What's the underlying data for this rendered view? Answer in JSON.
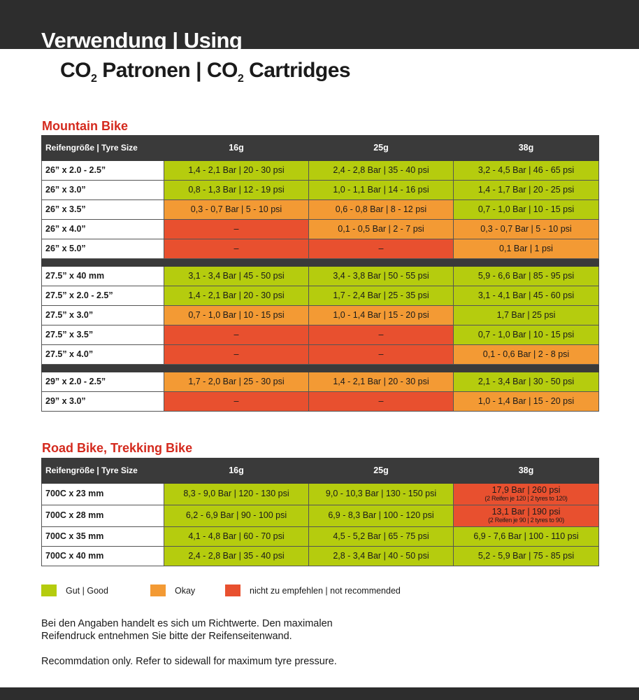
{
  "header": {
    "title": "Verwendung | Using",
    "subtitle_a": "CO",
    "subtitle_b": "2",
    "subtitle_c": " Patronen | CO",
    "subtitle_d": "2",
    "subtitle_e": " Cartridges"
  },
  "colors": {
    "good": "#b5cc0e",
    "okay": "#f39a34",
    "not_recommended": "#e8502f",
    "header": "#3a3a3a",
    "section_title": "#d42a1e"
  },
  "tables": [
    {
      "title": "Mountain Bike",
      "columns": [
        "Reifengröße | Tyre Size",
        "16g",
        "25g",
        "38g"
      ],
      "rows": [
        {
          "size": "26” x 2.0 - 2.5”",
          "cells": [
            [
              "1,4 - 2,1 Bar | 20 - 30 psi",
              "g"
            ],
            [
              "2,4 - 2,8 Bar | 35 - 40 psi",
              "g"
            ],
            [
              "3,2 - 4,5 Bar | 46 - 65 psi",
              "g"
            ]
          ]
        },
        {
          "size": "26” x 3.0”",
          "cells": [
            [
              "0,8 - 1,3 Bar | 12 - 19 psi",
              "g"
            ],
            [
              "1,0 - 1,1 Bar | 14 - 16 psi",
              "g"
            ],
            [
              "1,4 - 1,7 Bar | 20 - 25 psi",
              "g"
            ]
          ]
        },
        {
          "size": "26” x 3.5”",
          "cells": [
            [
              "0,3 - 0,7 Bar | 5 - 10 psi",
              "o"
            ],
            [
              "0,6 - 0,8 Bar | 8 - 12 psi",
              "o"
            ],
            [
              "0,7 - 1,0 Bar | 10 - 15 psi",
              "g"
            ]
          ]
        },
        {
          "size": "26” x 4.0”",
          "cells": [
            [
              "–",
              "x"
            ],
            [
              "0,1 - 0,5 Bar | 2 - 7 psi",
              "o"
            ],
            [
              "0,3 - 0,7 Bar | 5 - 10 psi",
              "o"
            ]
          ]
        },
        {
          "size": "26” x 5.0”",
          "cells": [
            [
              "–",
              "x"
            ],
            [
              "–",
              "x"
            ],
            [
              "0,1 Bar | 1 psi",
              "o"
            ]
          ]
        },
        {
          "separator": true
        },
        {
          "size": "27.5” x 40 mm",
          "cells": [
            [
              "3,1 - 3,4 Bar | 45 - 50 psi",
              "g"
            ],
            [
              "3,4 - 3,8 Bar | 50 - 55 psi",
              "g"
            ],
            [
              "5,9 - 6,6 Bar | 85 - 95 psi",
              "g"
            ]
          ]
        },
        {
          "size": "27.5” x 2.0 - 2.5”",
          "cells": [
            [
              "1,4 - 2,1 Bar | 20 - 30 psi",
              "g"
            ],
            [
              "1,7 - 2,4 Bar | 25 - 35 psi",
              "g"
            ],
            [
              "3,1 - 4,1 Bar | 45 - 60 psi",
              "g"
            ]
          ]
        },
        {
          "size": "27.5” x 3.0”",
          "cells": [
            [
              "0,7 - 1,0 Bar | 10 - 15 psi",
              "o"
            ],
            [
              "1,0 - 1,4 Bar | 15 - 20 psi",
              "o"
            ],
            [
              "1,7 Bar | 25 psi",
              "g"
            ]
          ]
        },
        {
          "size": "27.5” x 3.5”",
          "cells": [
            [
              "–",
              "x"
            ],
            [
              "–",
              "x"
            ],
            [
              "0,7 - 1,0 Bar | 10 - 15 psi",
              "g"
            ]
          ]
        },
        {
          "size": "27.5” x 4.0”",
          "cells": [
            [
              "–",
              "x"
            ],
            [
              "–",
              "x"
            ],
            [
              "0,1 - 0,6 Bar | 2 - 8 psi",
              "o"
            ]
          ]
        },
        {
          "separator": true
        },
        {
          "size": "29” x 2.0 - 2.5”",
          "cells": [
            [
              "1,7 - 2,0 Bar | 25 - 30 psi",
              "o"
            ],
            [
              "1,4 - 2,1 Bar | 20 - 30 psi",
              "o"
            ],
            [
              "2,1 - 3,4 Bar | 30 - 50 psi",
              "g"
            ]
          ]
        },
        {
          "size": "29” x 3.0”",
          "cells": [
            [
              "–",
              "x"
            ],
            [
              "–",
              "x"
            ],
            [
              "1,0 - 1,4 Bar | 15 - 20 psi",
              "o"
            ]
          ]
        }
      ]
    },
    {
      "title": "Road Bike, Trekking Bike",
      "columns": [
        "Reifengröße | Tyre Size",
        "16g",
        "25g",
        "38g"
      ],
      "rows": [
        {
          "size": "700C x 23 mm",
          "tall": true,
          "cells": [
            [
              "8,3 - 9,0 Bar | 120 - 130 psi",
              "g"
            ],
            [
              "9,0 - 10,3 Bar | 130 - 150 psi",
              "g"
            ],
            [
              "17,9 Bar | 260 psi",
              "x",
              "(2 Reifen je 120 | 2 tyres to 120)"
            ]
          ]
        },
        {
          "size": "700C x 28 mm",
          "tall": true,
          "cells": [
            [
              "6,2 - 6,9 Bar | 90 - 100 psi",
              "g"
            ],
            [
              "6,9 - 8,3 Bar | 100 - 120 psi",
              "g"
            ],
            [
              "13,1 Bar | 190 psi",
              "x",
              "(2 Reifen je 90 | 2 tyres to 90)"
            ]
          ]
        },
        {
          "size": "700C x 35 mm",
          "cells": [
            [
              "4,1 - 4,8 Bar | 60 - 70 psi",
              "g"
            ],
            [
              "4,5 - 5,2 Bar | 65 - 75 psi",
              "g"
            ],
            [
              "6,9 - 7,6 Bar | 100 - 110 psi",
              "g"
            ]
          ]
        },
        {
          "size": "700C x 40 mm",
          "cells": [
            [
              "2,4 - 2,8 Bar | 35 - 40 psi",
              "g"
            ],
            [
              "2,8 - 3,4 Bar | 40 - 50 psi",
              "g"
            ],
            [
              "5,2 - 5,9 Bar | 75 - 85 psi",
              "g"
            ]
          ]
        }
      ]
    }
  ],
  "legend": [
    {
      "label": "Gut | Good",
      "status": "g"
    },
    {
      "label": "Okay",
      "status": "o"
    },
    {
      "label": "nicht zu empfehlen | not recommended",
      "status": "x"
    }
  ],
  "footer": {
    "de_line1": "Bei den Angaben handelt es sich um Richtwerte. Den maximalen",
    "de_line2": "Reifendruck entnehmen Sie bitte der Reifenseitenwand.",
    "en": "Recommdation only. Refer to sidewall for maximum tyre pressure."
  }
}
